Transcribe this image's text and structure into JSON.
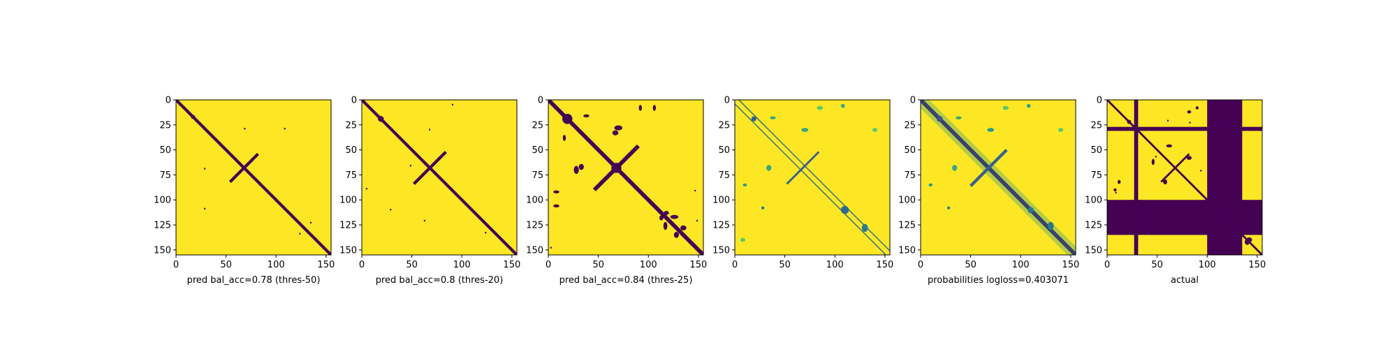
{
  "chart_data": [
    {
      "type": "heatmap",
      "encoding": "binary",
      "matrix_size": 155,
      "xlim": [
        0,
        155
      ],
      "ylim": [
        155,
        0
      ],
      "xticks": [
        0,
        50,
        100,
        150
      ],
      "yticks": [
        0,
        25,
        50,
        75,
        100,
        125,
        150
      ],
      "colormap": [
        "#440154",
        "#fde725"
      ],
      "xlabel": "pred bal_acc=0.78 (thres-50)",
      "features": [
        {
          "kind": "diagonal",
          "width": 3
        },
        {
          "kind": "antidiagonal",
          "center": [
            68,
            68
          ],
          "half_length": 14,
          "width": 3
        },
        {
          "kind": "blob",
          "x": 17,
          "y": 17,
          "w": 4,
          "h": 4
        },
        {
          "kind": "dot",
          "x": 68,
          "y": 28
        },
        {
          "kind": "dot",
          "x": 108,
          "y": 28
        },
        {
          "kind": "dot",
          "x": 28,
          "y": 108
        },
        {
          "kind": "dot",
          "x": 28,
          "y": 68
        },
        {
          "kind": "dot",
          "x": 134,
          "y": 122
        },
        {
          "kind": "dot",
          "x": 123,
          "y": 133
        }
      ]
    },
    {
      "type": "heatmap",
      "encoding": "binary",
      "matrix_size": 155,
      "xlim": [
        0,
        155
      ],
      "ylim": [
        155,
        0
      ],
      "xticks": [
        0,
        50,
        100,
        150
      ],
      "yticks": [
        0,
        25,
        50,
        75,
        100,
        125,
        150
      ],
      "colormap": [
        "#440154",
        "#fde725"
      ],
      "xlabel": "pred bal_acc=0.8 (thres-20)",
      "features": [
        {
          "kind": "diagonal",
          "width": 3
        },
        {
          "kind": "antidiagonal",
          "center": [
            68,
            68
          ],
          "half_length": 16,
          "width": 3
        },
        {
          "kind": "blob",
          "x": 19,
          "y": 19,
          "w": 6,
          "h": 5
        },
        {
          "kind": "dot",
          "x": 67,
          "y": 29
        },
        {
          "kind": "dot",
          "x": 90,
          "y": 4
        },
        {
          "kind": "dot",
          "x": 28,
          "y": 109
        },
        {
          "kind": "dot",
          "x": 4,
          "y": 88
        },
        {
          "kind": "dot",
          "x": 123,
          "y": 132
        },
        {
          "kind": "dot",
          "x": 48,
          "y": 65
        },
        {
          "kind": "dot",
          "x": 62,
          "y": 120
        }
      ]
    },
    {
      "type": "heatmap",
      "encoding": "binary",
      "matrix_size": 155,
      "xlim": [
        0,
        155
      ],
      "ylim": [
        155,
        0
      ],
      "xticks": [
        0,
        50,
        100,
        150
      ],
      "yticks": [
        0,
        25,
        50,
        75,
        100,
        125,
        150
      ],
      "colormap": [
        "#440154",
        "#fde725"
      ],
      "xlabel": "pred bal_acc=0.84 (thres-25)",
      "features": [
        {
          "kind": "diagonal",
          "width": 4
        },
        {
          "kind": "antidiagonal",
          "center": [
            68,
            68
          ],
          "half_length": 22,
          "width": 4
        },
        {
          "kind": "blob",
          "x": 19,
          "y": 19,
          "w": 10,
          "h": 10
        },
        {
          "kind": "blob",
          "x": 68,
          "y": 68,
          "w": 10,
          "h": 10
        },
        {
          "kind": "blob",
          "x": 38,
          "y": 16,
          "w": 6,
          "h": 3
        },
        {
          "kind": "blob",
          "x": 70,
          "y": 28,
          "w": 8,
          "h": 5
        },
        {
          "kind": "blob",
          "x": 33,
          "y": 67,
          "w": 5,
          "h": 6
        },
        {
          "kind": "blob",
          "x": 106,
          "y": 8,
          "w": 3,
          "h": 6
        },
        {
          "kind": "blob",
          "x": 8,
          "y": 92,
          "w": 6,
          "h": 3
        },
        {
          "kind": "blob",
          "x": 126,
          "y": 117,
          "w": 8,
          "h": 4
        },
        {
          "kind": "blob",
          "x": 135,
          "y": 128,
          "w": 6,
          "h": 5
        },
        {
          "kind": "blob",
          "x": 113,
          "y": 118,
          "w": 4,
          "h": 5
        },
        {
          "kind": "dot",
          "x": 146,
          "y": 90
        },
        {
          "kind": "dot",
          "x": 148,
          "y": 120
        },
        {
          "kind": "dot",
          "x": 2,
          "y": 147
        }
      ]
    },
    {
      "type": "heatmap",
      "encoding": "probability",
      "matrix_size": 155,
      "xlim": [
        0,
        155
      ],
      "ylim": [
        155,
        0
      ],
      "xticks": [
        0,
        50,
        100,
        150
      ],
      "yticks": [
        0,
        25,
        50,
        75,
        100,
        125,
        150
      ],
      "colormap": [
        "#440154",
        "#3b528b",
        "#21918c",
        "#5ec962",
        "#fde725"
      ],
      "xlabel": "",
      "features": [
        {
          "kind": "diagonal",
          "width": 1,
          "offset": 4,
          "level": 0.35
        },
        {
          "kind": "diagonal",
          "width": 1,
          "offset": -4,
          "level": 0.35
        },
        {
          "kind": "antidiagonal",
          "center": [
            68,
            68
          ],
          "half_length": 16,
          "width": 2,
          "level": 0.3
        },
        {
          "kind": "blob",
          "x": 19,
          "y": 19,
          "w": 5,
          "h": 5,
          "level": 0.3
        },
        {
          "kind": "blob",
          "x": 38,
          "y": 18,
          "w": 6,
          "h": 3,
          "level": 0.6
        },
        {
          "kind": "blob",
          "x": 70,
          "y": 30,
          "w": 7,
          "h": 4,
          "level": 0.6
        },
        {
          "kind": "blob",
          "x": 34,
          "y": 68,
          "w": 5,
          "h": 6,
          "level": 0.6
        },
        {
          "kind": "blob",
          "x": 110,
          "y": 110,
          "w": 8,
          "h": 8,
          "level": 0.35
        },
        {
          "kind": "blob",
          "x": 130,
          "y": 128,
          "w": 6,
          "h": 8,
          "level": 0.4
        },
        {
          "kind": "blob",
          "x": 28,
          "y": 108,
          "w": 3,
          "h": 3,
          "level": 0.4
        },
        {
          "kind": "blob",
          "x": 10,
          "y": 85,
          "w": 4,
          "h": 3,
          "level": 0.55
        },
        {
          "kind": "blob",
          "x": 108,
          "y": 6,
          "w": 4,
          "h": 4,
          "level": 0.6
        },
        {
          "kind": "blob",
          "x": 85,
          "y": 8,
          "w": 6,
          "h": 4,
          "level": 0.75
        },
        {
          "kind": "blob",
          "x": 140,
          "y": 30,
          "w": 5,
          "h": 4,
          "level": 0.75
        },
        {
          "kind": "blob",
          "x": 8,
          "y": 140,
          "w": 5,
          "h": 4,
          "level": 0.75
        }
      ]
    },
    {
      "type": "heatmap",
      "encoding": "probability",
      "matrix_size": 155,
      "xlim": [
        0,
        155
      ],
      "ylim": [
        155,
        0
      ],
      "xticks": [
        0,
        50,
        100,
        150
      ],
      "yticks": [
        0,
        25,
        50,
        75,
        100,
        125,
        150
      ],
      "colormap": [
        "#440154",
        "#3b528b",
        "#21918c",
        "#5ec962",
        "#fde725"
      ],
      "xlabel": "probabilities logloss=0.403071",
      "features": [
        {
          "kind": "diagonal",
          "width": 4,
          "level": 0.05
        },
        {
          "kind": "antidiagonal",
          "center": [
            68,
            68
          ],
          "half_length": 18,
          "width": 3,
          "level": 0.3
        },
        {
          "kind": "blob",
          "x": 19,
          "y": 19,
          "w": 6,
          "h": 6,
          "level": 0.25
        },
        {
          "kind": "blob",
          "x": 38,
          "y": 18,
          "w": 6,
          "h": 3,
          "level": 0.6
        },
        {
          "kind": "blob",
          "x": 70,
          "y": 30,
          "w": 7,
          "h": 4,
          "level": 0.55
        },
        {
          "kind": "blob",
          "x": 34,
          "y": 68,
          "w": 5,
          "h": 6,
          "level": 0.6
        },
        {
          "kind": "blob",
          "x": 110,
          "y": 110,
          "w": 6,
          "h": 6,
          "level": 0.4
        },
        {
          "kind": "blob",
          "x": 130,
          "y": 126,
          "w": 6,
          "h": 8,
          "level": 0.4
        },
        {
          "kind": "blob",
          "x": 28,
          "y": 108,
          "w": 3,
          "h": 3,
          "level": 0.45
        },
        {
          "kind": "blob",
          "x": 10,
          "y": 85,
          "w": 4,
          "h": 3,
          "level": 0.55
        },
        {
          "kind": "blob",
          "x": 108,
          "y": 6,
          "w": 4,
          "h": 4,
          "level": 0.6
        },
        {
          "kind": "blob",
          "x": 85,
          "y": 8,
          "w": 6,
          "h": 4,
          "level": 0.75
        },
        {
          "kind": "blob",
          "x": 140,
          "y": 30,
          "w": 5,
          "h": 4,
          "level": 0.75
        }
      ]
    },
    {
      "type": "heatmap",
      "encoding": "binary",
      "matrix_size": 155,
      "xlim": [
        0,
        155
      ],
      "ylim": [
        155,
        0
      ],
      "xticks": [
        0,
        50,
        100,
        150
      ],
      "yticks": [
        0,
        25,
        50,
        75,
        100,
        125,
        150
      ],
      "colormap": [
        "#440154",
        "#fde725"
      ],
      "xlabel": "actual",
      "features": [
        {
          "kind": "rect",
          "x0": 100,
          "x1": 135,
          "y0": 0,
          "y1": 155
        },
        {
          "kind": "rect",
          "x0": 0,
          "x1": 155,
          "y0": 100,
          "y1": 135
        },
        {
          "kind": "rect",
          "x0": 27,
          "x1": 31,
          "y0": 0,
          "y1": 155
        },
        {
          "kind": "rect",
          "x0": 0,
          "x1": 155,
          "y0": 27,
          "y1": 31
        },
        {
          "kind": "diagonal",
          "width": 2
        },
        {
          "kind": "antidiagonal",
          "center": [
            68,
            68
          ],
          "half_length": 14,
          "width": 2
        },
        {
          "kind": "blob",
          "x": 22,
          "y": 22,
          "w": 4,
          "h": 4
        },
        {
          "kind": "blob",
          "x": 62,
          "y": 46,
          "w": 6,
          "h": 3
        },
        {
          "kind": "blob",
          "x": 82,
          "y": 58,
          "w": 5,
          "h": 4
        },
        {
          "kind": "blob",
          "x": 90,
          "y": 8,
          "w": 3,
          "h": 3
        },
        {
          "kind": "blob",
          "x": 140,
          "y": 142,
          "w": 5,
          "h": 6
        },
        {
          "kind": "blob",
          "x": 12,
          "y": 82,
          "w": 3,
          "h": 4
        },
        {
          "kind": "dot",
          "x": 60,
          "y": 20
        },
        {
          "kind": "dot",
          "x": 82,
          "y": 22
        },
        {
          "kind": "dot",
          "x": 82,
          "y": 82
        },
        {
          "kind": "dot",
          "x": 48,
          "y": 56
        },
        {
          "kind": "dot",
          "x": 8,
          "y": 92
        },
        {
          "kind": "dot",
          "x": 93,
          "y": 70
        }
      ]
    }
  ]
}
